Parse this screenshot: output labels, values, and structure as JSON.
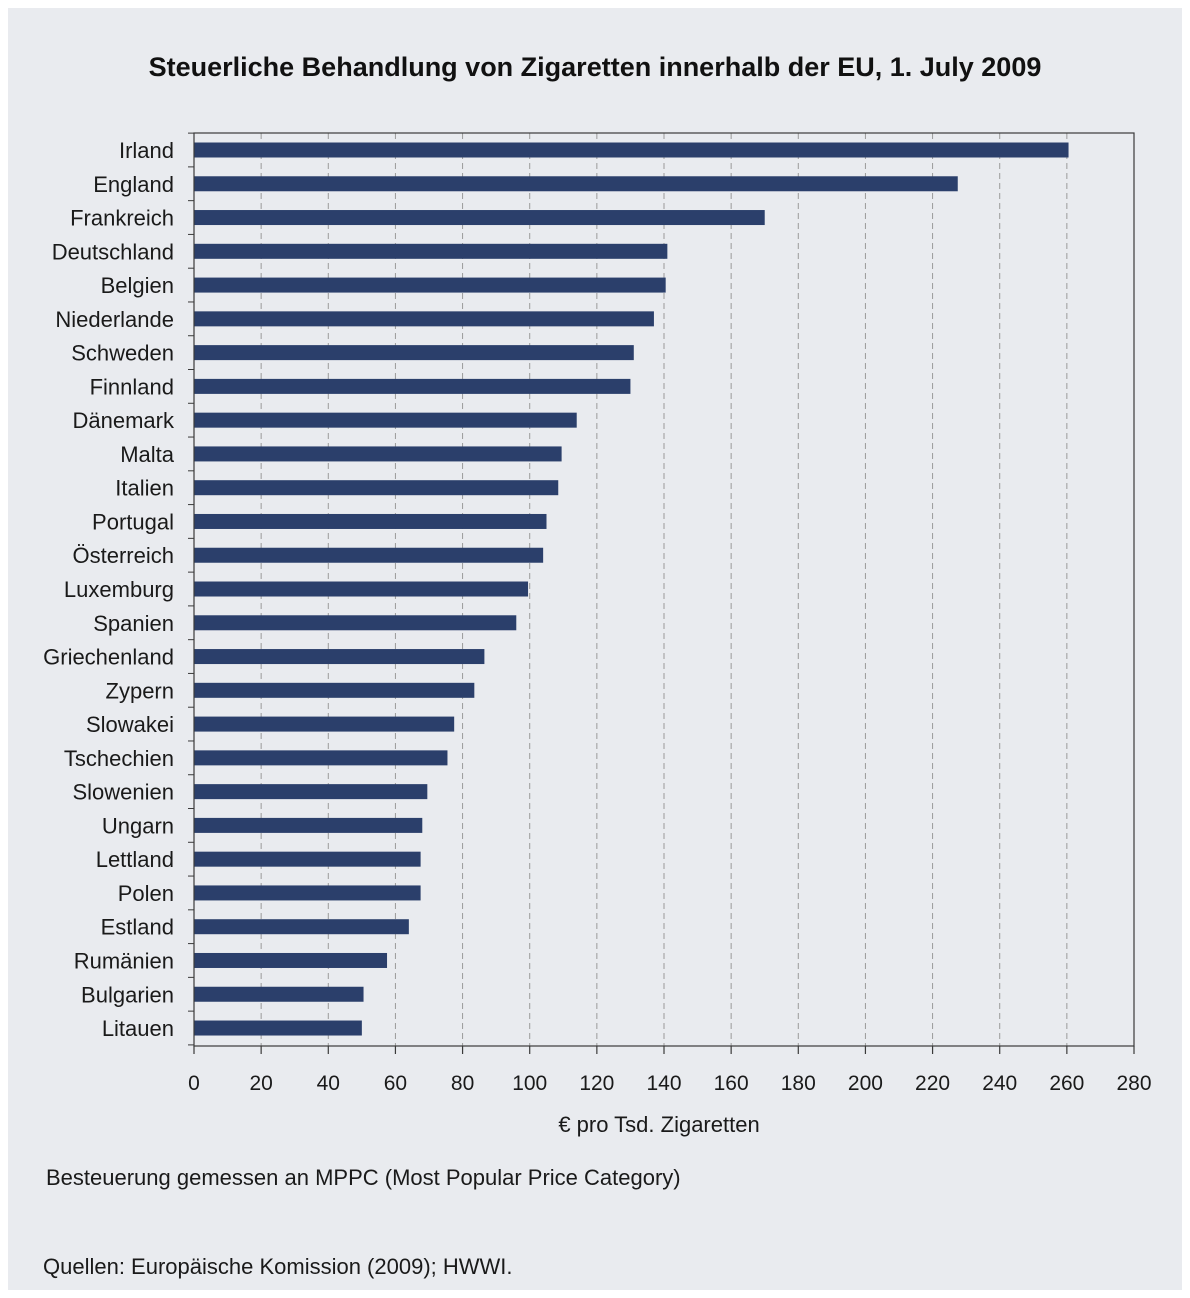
{
  "chart_data": {
    "type": "bar",
    "orientation": "horizontal",
    "title": "Steuerliche Behandlung von Zigaretten innerhalb der EU, 1. July 2009",
    "xlabel": "€ pro Tsd. Zigaretten",
    "ylabel": "",
    "xlim": [
      0,
      280
    ],
    "xticks": [
      0,
      20,
      40,
      60,
      80,
      100,
      120,
      140,
      160,
      180,
      200,
      220,
      240,
      260,
      280
    ],
    "grid": "vertical dashed",
    "bar_color": "#2b3f6b",
    "categories": [
      "Irland",
      "England",
      "Frankreich",
      "Deutschland",
      "Belgien",
      "Niederlande",
      "Schweden",
      "Finnland",
      "Dänemark",
      "Malta",
      "Italien",
      "Portugal",
      "Österreich",
      "Luxemburg",
      "Spanien",
      "Griechenland",
      "Zypern",
      "Slowakei",
      "Tschechien",
      "Slowenien",
      "Ungarn",
      "Lettland",
      "Polen",
      "Estland",
      "Rumänien",
      "Bulgarien",
      "Litauen"
    ],
    "values": [
      260.5,
      227.5,
      170,
      141,
      140.5,
      137,
      131,
      130,
      114,
      109.5,
      108.5,
      105,
      104,
      99.5,
      96,
      86.5,
      83.5,
      77.5,
      75.5,
      69.5,
      68,
      67.5,
      67.5,
      64,
      57.5,
      50.5,
      50
    ]
  },
  "note": "Besteuerung gemessen an MPPC (Most Popular Price Category)",
  "source": "Quellen: Europäische Komission (2009); HWWI."
}
